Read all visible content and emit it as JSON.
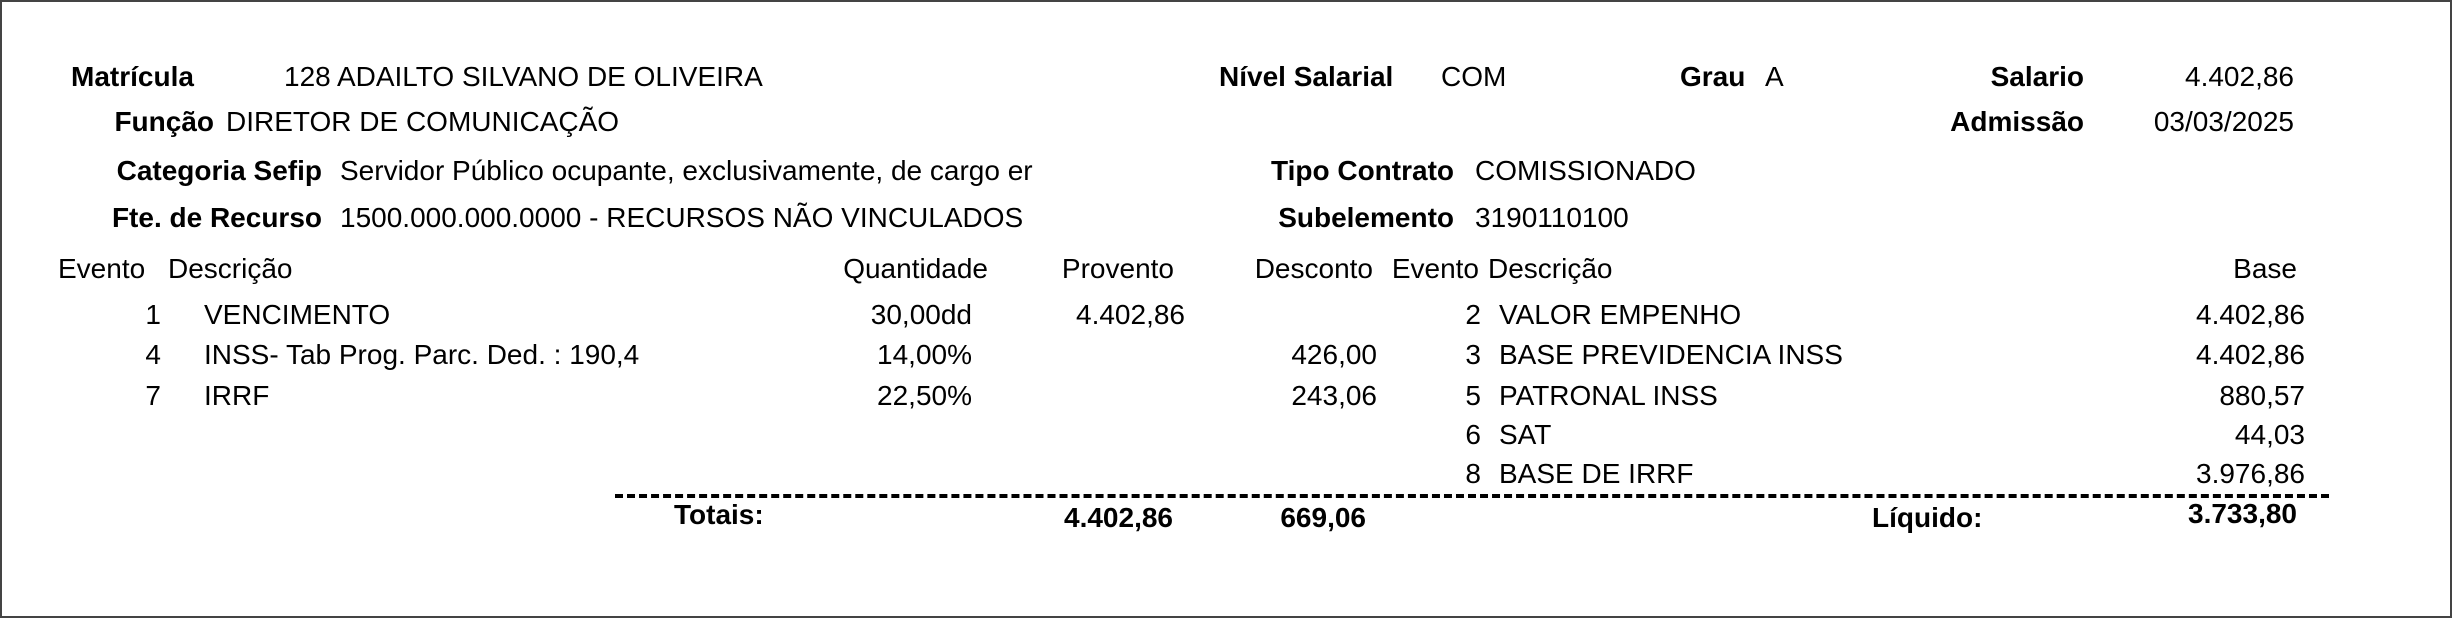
{
  "header": {
    "matricula_label": "Matrícula",
    "matricula_value": "128 ADAILTO SILVANO DE OLIVEIRA",
    "funcao_label": "Função",
    "funcao_value": "DIRETOR DE COMUNICAÇÃO",
    "categoria_label": "Categoria Sefip",
    "categoria_value": "Servidor Público ocupante, exclusivamente, de cargo er",
    "fonte_label": "Fte. de Recurso",
    "fonte_value": "1500.000.000.0000 - RECURSOS NÃO VINCULADOS",
    "nivel_label": "Nível Salarial",
    "nivel_value": "COM",
    "grau_label": "Grau",
    "grau_value": "A",
    "salario_label": "Salario",
    "salario_value": "4.402,86",
    "admissao_label": "Admissão",
    "admissao_value": "03/03/2025",
    "tipo_label": "Tipo Contrato",
    "tipo_value": "COMISSIONADO",
    "subelemento_label": "Subelemento",
    "subelemento_value": "3190110100"
  },
  "columns": {
    "evento": "Evento",
    "descricao": "Descrição",
    "quantidade": "Quantidade",
    "provento": "Provento",
    "desconto": "Desconto",
    "evento2": "Evento",
    "descricao2": "Descrição",
    "base": "Base"
  },
  "events": [
    {
      "evento": "1",
      "descricao": "VENCIMENTO",
      "quantidade": "30,00dd",
      "provento": "4.402,86",
      "desconto": ""
    },
    {
      "evento": "4",
      "descricao": "INSS- Tab Prog. Parc. Ded. : 190,4",
      "quantidade": "14,00%",
      "provento": "",
      "desconto": "426,00"
    },
    {
      "evento": "7",
      "descricao": "IRRF",
      "quantidade": "22,50%",
      "provento": "",
      "desconto": "243,06"
    }
  ],
  "bases": [
    {
      "evento": "2",
      "descricao": "VALOR EMPENHO",
      "base": "4.402,86"
    },
    {
      "evento": "3",
      "descricao": "BASE PREVIDENCIA INSS",
      "base": "4.402,86"
    },
    {
      "evento": "5",
      "descricao": "PATRONAL INSS",
      "base": "880,57"
    },
    {
      "evento": "6",
      "descricao": "SAT",
      "base": "44,03"
    },
    {
      "evento": "8",
      "descricao": "BASE DE IRRF",
      "base": "3.976,86"
    }
  ],
  "totals": {
    "label": "Totais:",
    "proventos": "4.402,86",
    "descontos": "669,06",
    "liquido_label": "Líquido:",
    "liquido": "3.733,80"
  }
}
